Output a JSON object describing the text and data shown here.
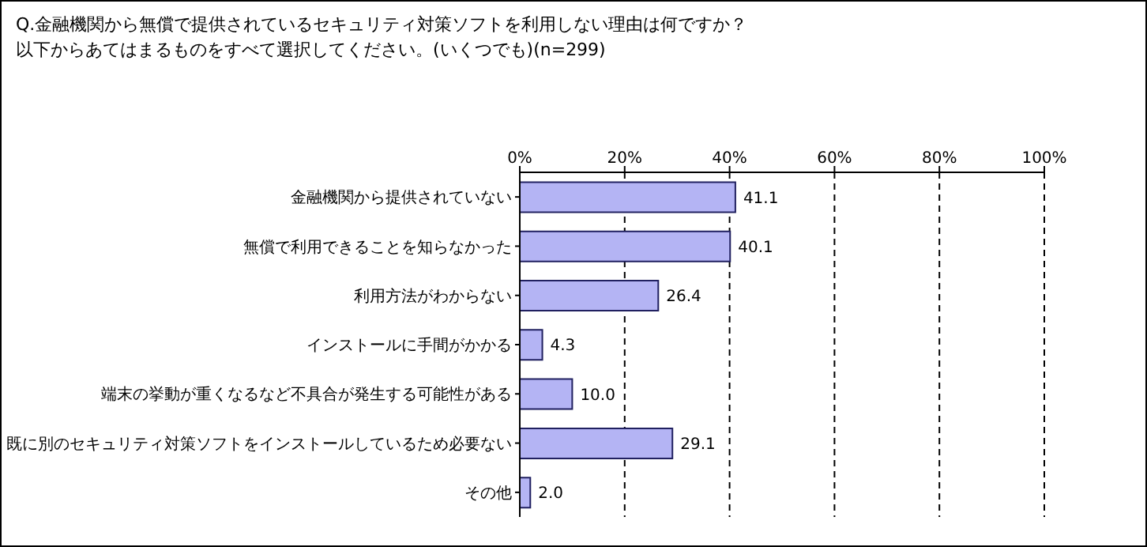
{
  "chart_data": {
    "type": "bar",
    "orientation": "horizontal",
    "title": "Q.金融機関から無償で提供されているセキュリティ対策ソフトを利用しない理由は何ですか？",
    "subtitle": "以下からあてはまるものをすべて選択してください。(いくつでも)(n=299)",
    "categories": [
      "金融機関から提供されていない",
      "無償で利用できることを知らなかった",
      "利用方法がわからない",
      "インストールに手間がかかる",
      "端末の挙動が重くなるなど不具合が発生する可能性がある",
      "既に別のセキュリティ対策ソフトをインストールしているため必要ない",
      "その他"
    ],
    "values": [
      41.1,
      40.1,
      26.4,
      4.3,
      10.0,
      29.1,
      2.0
    ],
    "value_labels": [
      "41.1",
      "40.1",
      "26.4",
      "4.3",
      "10.0",
      "29.1",
      "2.0"
    ],
    "color": "#b4b4f4",
    "xlim": [
      0,
      100
    ],
    "xticks": [
      {
        "value": 0,
        "label": "0%"
      },
      {
        "value": 20,
        "label": "20%"
      },
      {
        "value": 40,
        "label": "40%"
      },
      {
        "value": 60,
        "label": "60%"
      },
      {
        "value": 80,
        "label": "80%"
      },
      {
        "value": 100,
        "label": "100%"
      }
    ],
    "grid": "x"
  }
}
